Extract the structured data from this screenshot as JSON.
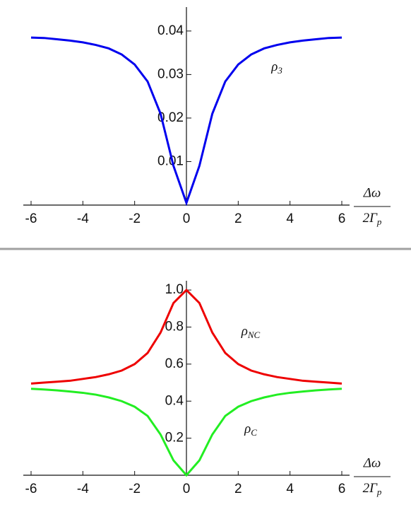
{
  "chart_data": [
    {
      "type": "line",
      "x": [
        -6,
        -5.5,
        -5,
        -4.5,
        -4,
        -3.5,
        -3,
        -2.5,
        -2,
        -1.5,
        -1,
        -0.5,
        0,
        0.5,
        1,
        1.5,
        2,
        2.5,
        3,
        3.5,
        4,
        4.5,
        5,
        5.5,
        6
      ],
      "series": [
        {
          "name": "ρ3",
          "color": "#0000ee",
          "values": [
            0.0385,
            0.0384,
            0.0381,
            0.0378,
            0.0374,
            0.0368,
            0.036,
            0.0346,
            0.0323,
            0.0284,
            0.021,
            0.009,
            0.0005,
            0.009,
            0.021,
            0.0284,
            0.0323,
            0.0346,
            0.036,
            0.0368,
            0.0374,
            0.0378,
            0.0381,
            0.0384,
            0.0385
          ]
        }
      ],
      "x_label_numerator": "Δω",
      "x_label_denominator": "2Γp",
      "xlim": [
        -6.3,
        6.3
      ],
      "xticks": [
        -6,
        -4,
        -2,
        0,
        2,
        4,
        6
      ],
      "ylim": [
        0,
        0.0455
      ],
      "yticks": [
        0.01,
        0.02,
        0.03,
        0.04
      ]
    },
    {
      "type": "line",
      "x": [
        -6,
        -5.5,
        -5,
        -4.5,
        -4,
        -3.5,
        -3,
        -2.5,
        -2,
        -1.5,
        -1,
        -0.5,
        0,
        0.5,
        1,
        1.5,
        2,
        2.5,
        3,
        3.5,
        4,
        4.5,
        5,
        5.5,
        6
      ],
      "series": [
        {
          "name": "ρNC",
          "color": "#ee0000",
          "values": [
            0.495,
            0.5,
            0.505,
            0.51,
            0.52,
            0.53,
            0.545,
            0.565,
            0.6,
            0.66,
            0.77,
            0.93,
            1.0,
            0.93,
            0.77,
            0.66,
            0.6,
            0.565,
            0.545,
            0.53,
            0.52,
            0.51,
            0.505,
            0.5,
            0.495
          ]
        },
        {
          "name": "ρC",
          "color": "#22ee22",
          "values": [
            0.467,
            0.463,
            0.458,
            0.452,
            0.445,
            0.435,
            0.42,
            0.4,
            0.37,
            0.32,
            0.22,
            0.08,
            0.0,
            0.08,
            0.22,
            0.32,
            0.37,
            0.4,
            0.42,
            0.435,
            0.445,
            0.452,
            0.458,
            0.463,
            0.467
          ]
        }
      ],
      "x_label_numerator": "Δω",
      "x_label_denominator": "2Γp",
      "xlim": [
        -6.3,
        6.3
      ],
      "xticks": [
        -6,
        -4,
        -2,
        0,
        2,
        4,
        6
      ],
      "ylim": [
        0,
        1.05
      ],
      "yticks": [
        0.2,
        0.4,
        0.6,
        0.8,
        {
          "value": 1,
          "label": "1.0"
        }
      ]
    }
  ]
}
